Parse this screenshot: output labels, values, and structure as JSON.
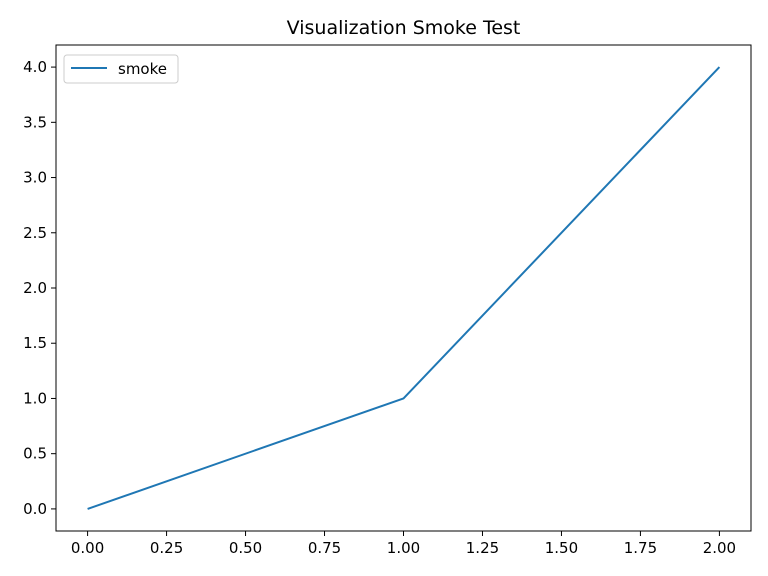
{
  "chart_data": {
    "type": "line",
    "title": "Visualization Smoke Test",
    "xlabel": "",
    "ylabel": "",
    "xlim": [
      -0.1,
      2.1
    ],
    "ylim": [
      -0.2,
      4.2
    ],
    "x_ticks": [
      0.0,
      0.25,
      0.5,
      0.75,
      1.0,
      1.25,
      1.5,
      1.75,
      2.0
    ],
    "x_tick_labels": [
      "0.00",
      "0.25",
      "0.50",
      "0.75",
      "1.00",
      "1.25",
      "1.50",
      "1.75",
      "2.00"
    ],
    "y_ticks": [
      0.0,
      0.5,
      1.0,
      1.5,
      2.0,
      2.5,
      3.0,
      3.5,
      4.0
    ],
    "y_tick_labels": [
      "0.0",
      "0.5",
      "1.0",
      "1.5",
      "2.0",
      "2.5",
      "3.0",
      "3.5",
      "4.0"
    ],
    "grid": false,
    "legend_position": "upper-left",
    "series": [
      {
        "name": "smoke",
        "color": "#1f77b4",
        "x": [
          0,
          1,
          2
        ],
        "y": [
          0,
          1,
          4
        ]
      }
    ]
  }
}
